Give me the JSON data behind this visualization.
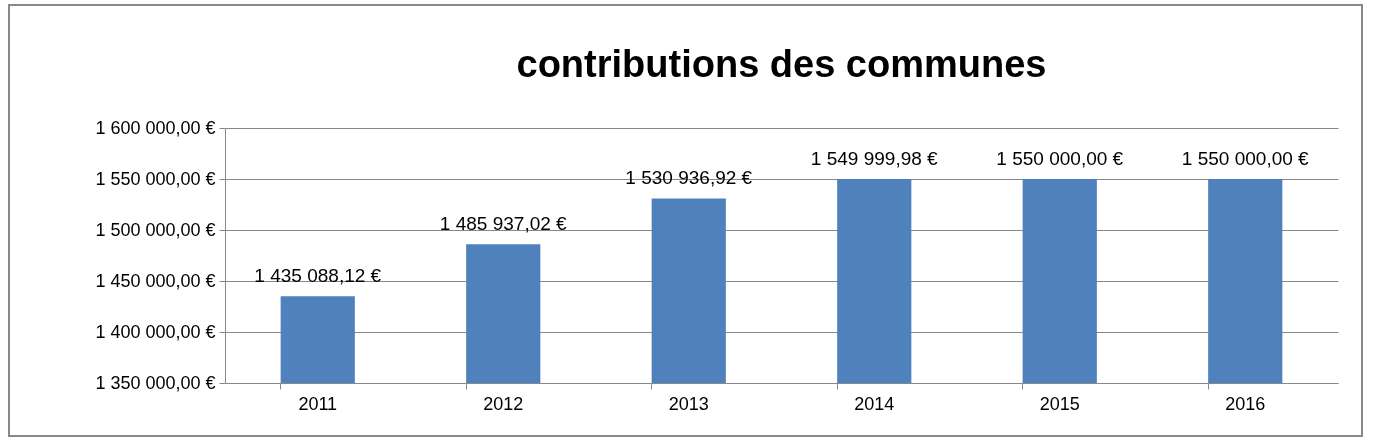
{
  "chart_data": {
    "type": "bar",
    "title": "contributions des communes",
    "categories": [
      "2011",
      "2012",
      "2013",
      "2014",
      "2015",
      "2016"
    ],
    "values": [
      1435088.12,
      1485937.02,
      1530936.92,
      1549999.98,
      1550000,
      1550000
    ],
    "value_labels": [
      "1 435 088,12 €",
      "1 485 937,02 €",
      "1 530 936,92 €",
      "1 549 999,98 €",
      "1 550 000,00 €",
      "1 550 000,00 €"
    ],
    "color": "#4f81bd",
    "ylim": [
      1350000,
      1600000
    ],
    "yticks": [
      {
        "value": 1350000,
        "label": "1 350 000,00 €"
      },
      {
        "value": 1400000,
        "label": "1 400 000,00 €"
      },
      {
        "value": 1450000,
        "label": "1 450 000,00 €"
      },
      {
        "value": 1500000,
        "label": "1 500 000,00 €"
      },
      {
        "value": 1550000,
        "label": "1 550 000,00 €"
      },
      {
        "value": 1600000,
        "label": "1 600 000,00 €"
      }
    ],
    "grid": "y"
  }
}
